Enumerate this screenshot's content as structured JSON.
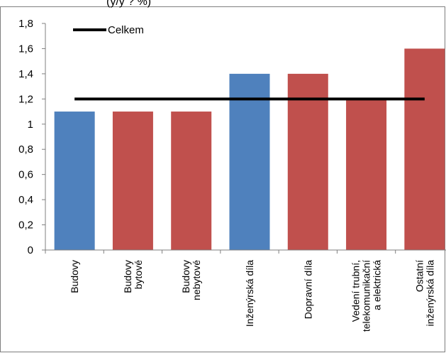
{
  "chart_data": {
    "type": "bar",
    "title_fragment": "(y/y ? %)",
    "categories": [
      [
        "Budovy"
      ],
      [
        "Budovy",
        "bytové"
      ],
      [
        "Budovy",
        "nebytové"
      ],
      [
        "Inženýrská díla"
      ],
      [
        "Dopravní díla"
      ],
      [
        "Vedení trubní,",
        "telekomunikační",
        "a elektrická"
      ],
      [
        "Ostatní",
        "inženýrská díla"
      ]
    ],
    "values": [
      1.1,
      1.1,
      1.1,
      1.4,
      1.4,
      1.2,
      1.6
    ],
    "bar_colors": [
      "#4f81bd",
      "#c0504d",
      "#c0504d",
      "#4f81bd",
      "#c0504d",
      "#c0504d",
      "#c0504d"
    ],
    "reference_line": {
      "name": "Celkem",
      "value": 1.2,
      "color": "#000000"
    },
    "y_ticks": [
      "0",
      "0,2",
      "0,4",
      "0,6",
      "0,8",
      "1",
      "1,2",
      "1,4",
      "1,6",
      "1,8"
    ],
    "ylim": [
      0,
      1.8
    ],
    "legend_position": "top-left",
    "grid": false
  }
}
